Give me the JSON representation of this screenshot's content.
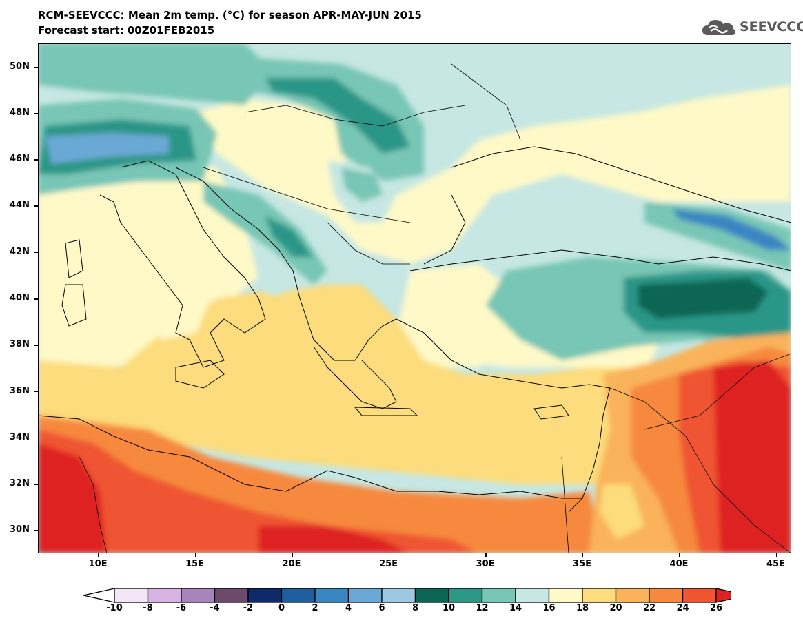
{
  "header": {
    "title_line1": "RCM-SEEVCCC: Mean 2m temp. (°C) for season APR-MAY-JUN 2015",
    "title_line2": "Forecast start: 00Z01FEB2015",
    "logo_text": "SEEVCCC"
  },
  "map": {
    "lon_range": [
      6.9,
      45.8
    ],
    "lat_range": [
      29.0,
      51.0
    ],
    "lat_labels": [
      "50N",
      "48N",
      "46N",
      "44N",
      "42N",
      "40N",
      "38N",
      "36N",
      "34N",
      "32N",
      "30N"
    ],
    "lat_values": [
      50,
      48,
      46,
      44,
      42,
      40,
      38,
      36,
      34,
      32,
      30
    ],
    "lon_labels": [
      "10E",
      "15E",
      "20E",
      "25E",
      "30E",
      "35E",
      "40E",
      "45E"
    ],
    "lon_values": [
      10,
      15,
      20,
      25,
      30,
      35,
      40,
      45
    ],
    "field_variable": "Mean 2m temperature",
    "field_unit": "°C"
  },
  "colorbar": {
    "labels": [
      "-10",
      "-8",
      "-6",
      "-4",
      "-2",
      "0",
      "2",
      "4",
      "6",
      "8",
      "10",
      "12",
      "14",
      "16",
      "18",
      "20",
      "22",
      "24",
      "26"
    ],
    "colors": [
      "#f2e6f7",
      "#d8b2e2",
      "#a884bc",
      "#6b4a6e",
      "#0e2a6a",
      "#1f5fa0",
      "#3a86c2",
      "#6aa9d6",
      "#9cc8e2",
      "#0d6653",
      "#2c9687",
      "#78c6b5",
      "#c6e7e3",
      "#fff9c8",
      "#fcdc7c",
      "#fab35a",
      "#f6893e",
      "#ef5533"
    ],
    "under_color": "#ffffff",
    "over_color": "#de2121"
  }
}
